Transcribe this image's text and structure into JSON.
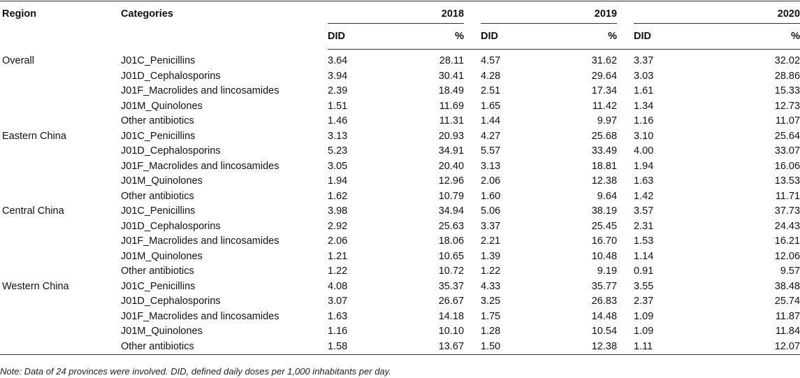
{
  "headers": {
    "region": "Region",
    "categories": "Categories",
    "years": [
      "2018",
      "2019",
      "2020"
    ],
    "sub": {
      "did": "DID",
      "pct": "%"
    }
  },
  "rows": [
    {
      "region": "Overall",
      "category": "J01C_Penicillins",
      "v": [
        "3.64",
        "28.11",
        "4.57",
        "31.62",
        "3.37",
        "32.02"
      ]
    },
    {
      "region": "",
      "category": "J01D_Cephalosporins",
      "v": [
        "3.94",
        "30.41",
        "4.28",
        "29.64",
        "3.03",
        "28.86"
      ]
    },
    {
      "region": "",
      "category": "J01F_Macrolides and lincosamides",
      "v": [
        "2.39",
        "18.49",
        "2.51",
        "17.34",
        "1.61",
        "15.33"
      ]
    },
    {
      "region": "",
      "category": "J01M_Quinolones",
      "v": [
        "1.51",
        "11.69",
        "1.65",
        "11.42",
        "1.34",
        "12.73"
      ]
    },
    {
      "region": "",
      "category": "Other antibiotics",
      "v": [
        "1.46",
        "11.31",
        "1.44",
        "9.97",
        "1.16",
        "11.07"
      ]
    },
    {
      "region": "Eastern China",
      "category": "J01C_Penicillins",
      "v": [
        "3.13",
        "20.93",
        "4.27",
        "25.68",
        "3.10",
        "25.64"
      ]
    },
    {
      "region": "",
      "category": "J01D_Cephalosporins",
      "v": [
        "5.23",
        "34.91",
        "5.57",
        "33.49",
        "4.00",
        "33.07"
      ]
    },
    {
      "region": "",
      "category": "J01F_Macrolides and lincosamides",
      "v": [
        "3.05",
        "20.40",
        "3.13",
        "18.81",
        "1.94",
        "16.06"
      ]
    },
    {
      "region": "",
      "category": "J01M_Quinolones",
      "v": [
        "1.94",
        "12.96",
        "2.06",
        "12.38",
        "1.63",
        "13.53"
      ]
    },
    {
      "region": "",
      "category": "Other antibiotics",
      "v": [
        "1.62",
        "10.79",
        "1.60",
        "9.64",
        "1.42",
        "11.71"
      ]
    },
    {
      "region": "Central China",
      "category": "J01C_Penicillins",
      "v": [
        "3.98",
        "34.94",
        "5.06",
        "38.19",
        "3.57",
        "37.73"
      ]
    },
    {
      "region": "",
      "category": "J01D_Cephalosporins",
      "v": [
        "2.92",
        "25.63",
        "3.37",
        "25.45",
        "2.31",
        "24.43"
      ]
    },
    {
      "region": "",
      "category": "J01F_Macrolides and lincosamides",
      "v": [
        "2.06",
        "18.06",
        "2.21",
        "16.70",
        "1.53",
        "16.21"
      ]
    },
    {
      "region": "",
      "category": "J01M_Quinolones",
      "v": [
        "1.21",
        "10.65",
        "1.39",
        "10.48",
        "1.14",
        "12.06"
      ]
    },
    {
      "region": "",
      "category": "Other antibiotics",
      "v": [
        "1.22",
        "10.72",
        "1.22",
        "9.19",
        "0.91",
        "9.57"
      ]
    },
    {
      "region": "Western China",
      "category": "J01C_Penicillins",
      "v": [
        "4.08",
        "35.37",
        "4.33",
        "35.77",
        "3.55",
        "38.48"
      ]
    },
    {
      "region": "",
      "category": "J01D_Cephalosporins",
      "v": [
        "3.07",
        "26.67",
        "3.25",
        "26.83",
        "2.37",
        "25.74"
      ]
    },
    {
      "region": "",
      "category": "J01F_Macrolides and lincosamides",
      "v": [
        "1.63",
        "14.18",
        "1.75",
        "14.48",
        "1.09",
        "11.87"
      ]
    },
    {
      "region": "",
      "category": "J01M_Quinolones",
      "v": [
        "1.16",
        "10.10",
        "1.28",
        "10.54",
        "1.09",
        "11.84"
      ]
    },
    {
      "region": "",
      "category": "Other antibiotics",
      "v": [
        "1.58",
        "13.67",
        "1.50",
        "12.38",
        "1.11",
        "12.07"
      ]
    }
  ],
  "note": "Note: Data of 24 provinces were involved. DID, defined daily doses per 1,000 inhabitants per day."
}
